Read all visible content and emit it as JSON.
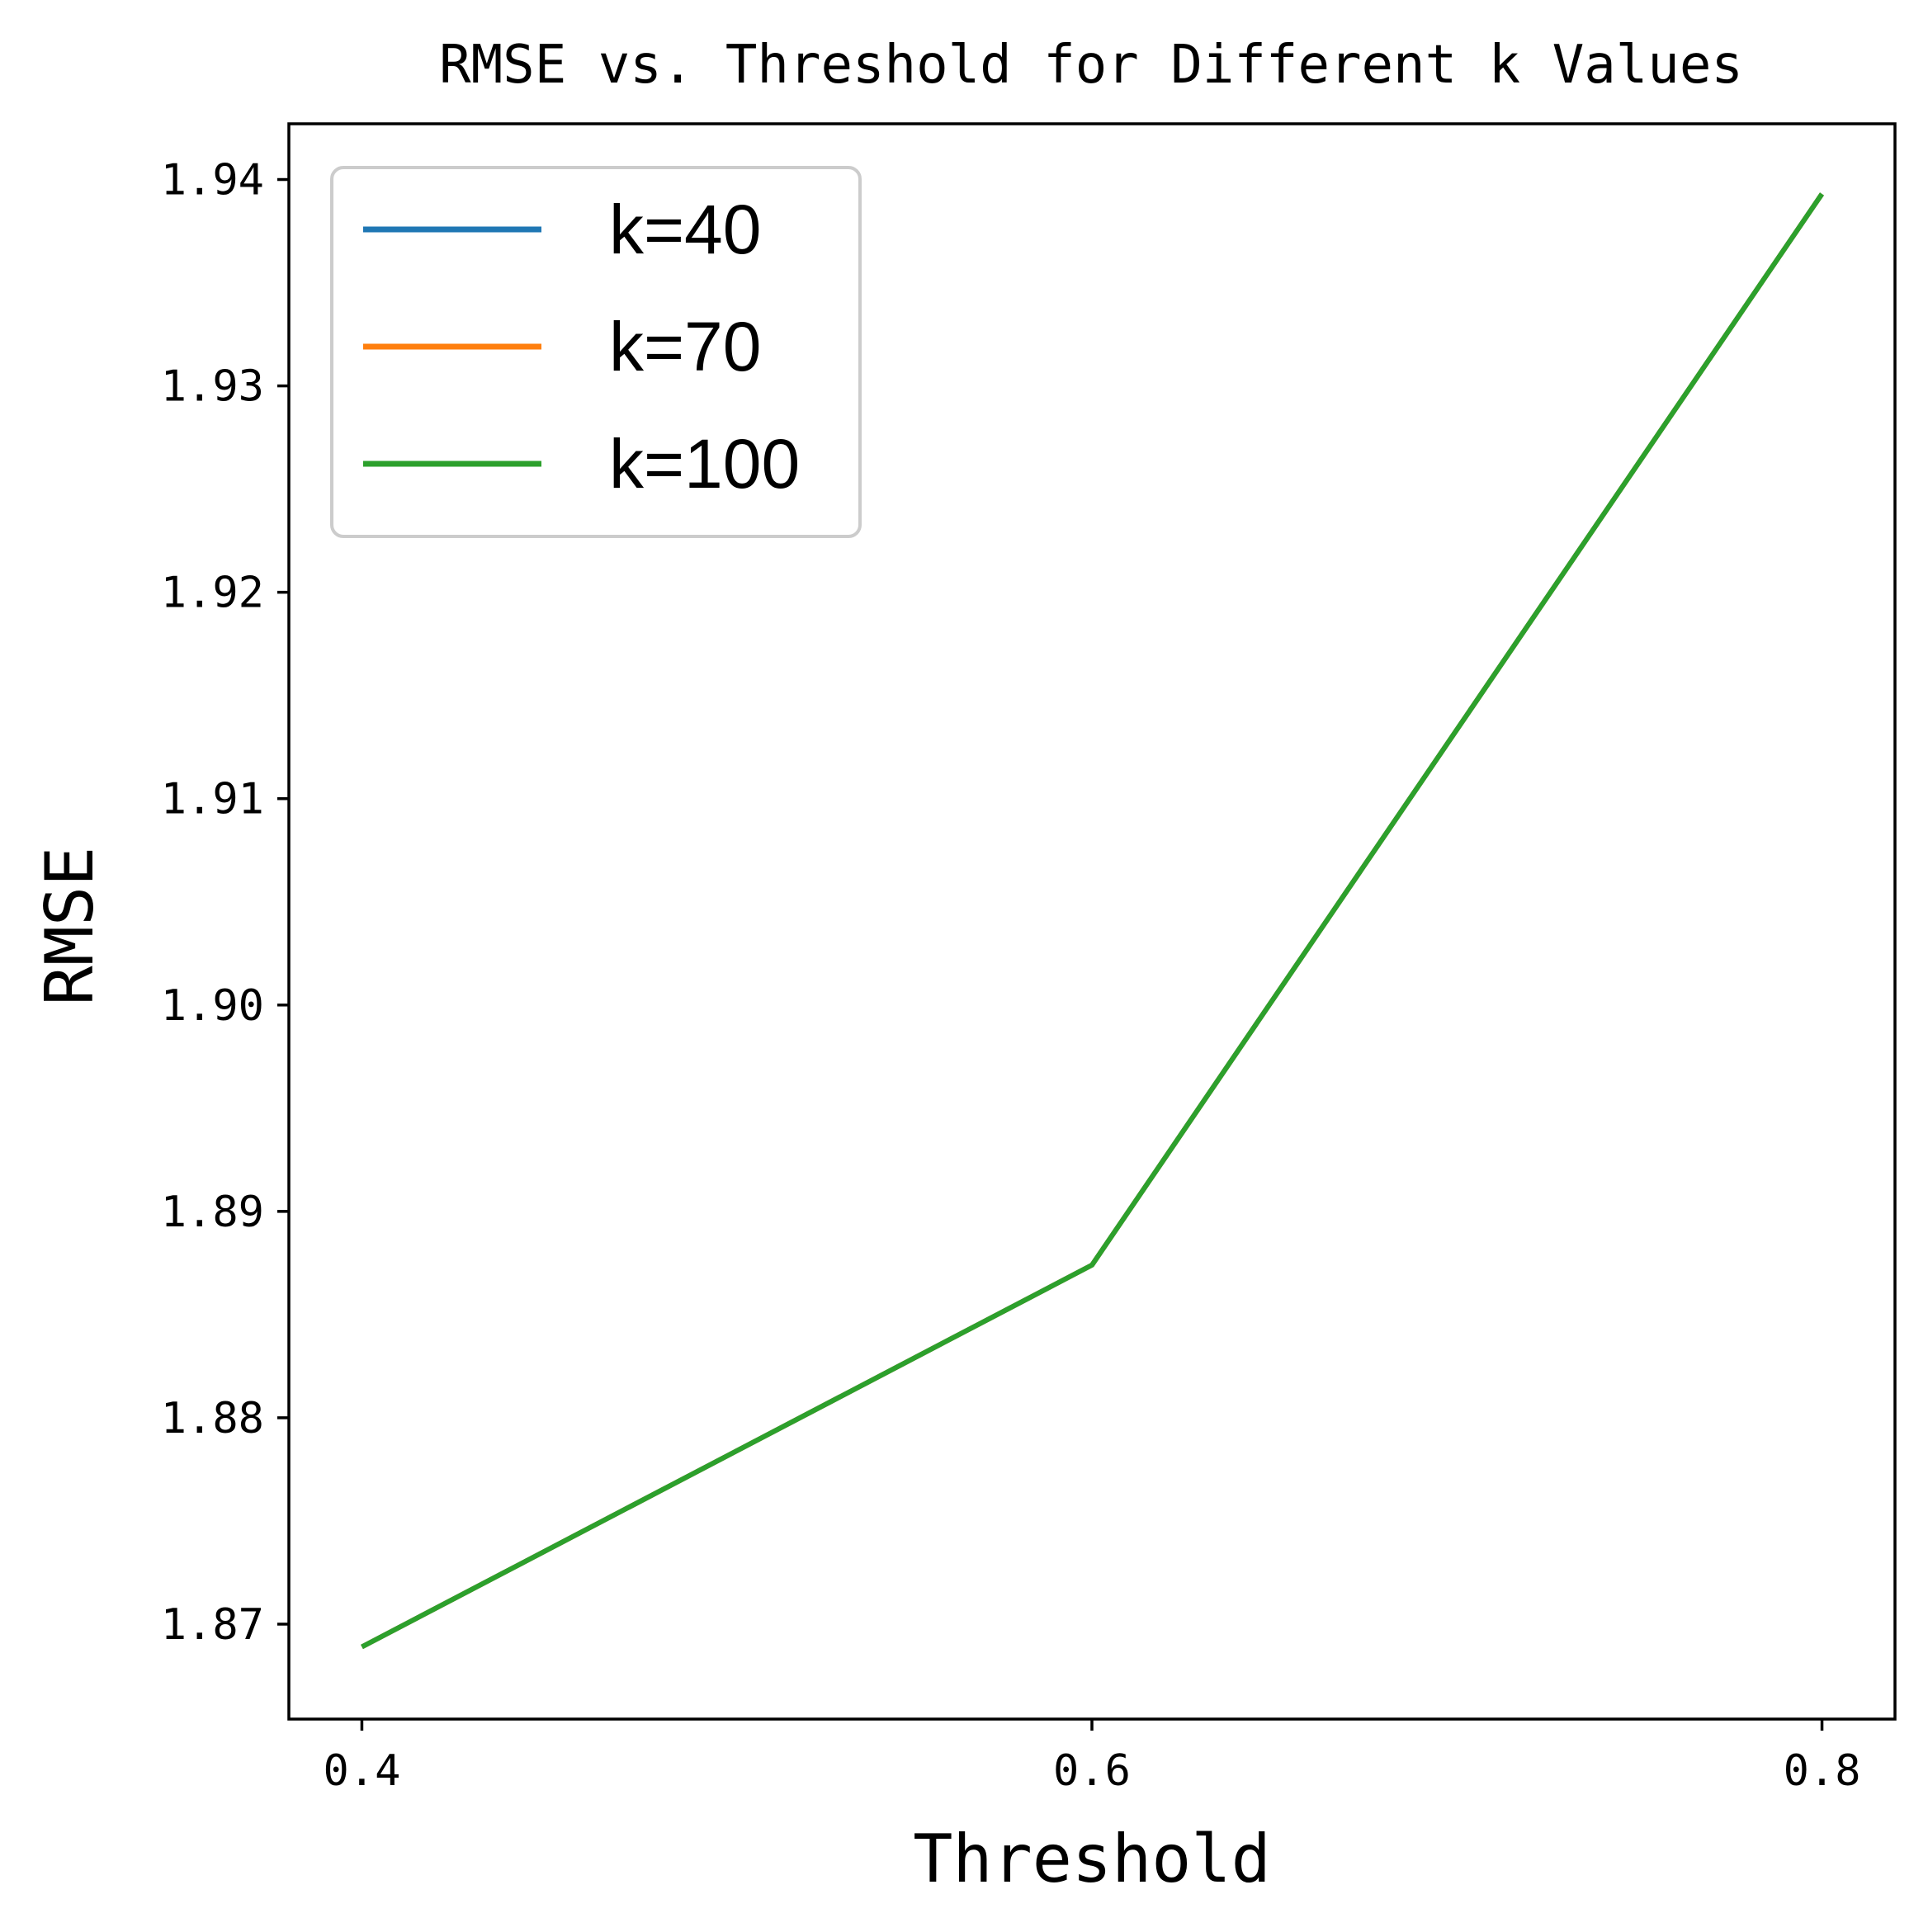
{
  "chart_data": {
    "type": "line",
    "title": "RMSE vs. Threshold for Different k Values",
    "xlabel": "Threshold",
    "ylabel": "RMSE",
    "x": [
      0.4,
      0.6,
      0.8
    ],
    "series": [
      {
        "name": "k=40",
        "color": "#1f77b4",
        "values": [
          1.8689,
          1.8874,
          1.9393
        ]
      },
      {
        "name": "k=70",
        "color": "#ff7f0e",
        "values": [
          1.8689,
          1.8874,
          1.9393
        ]
      },
      {
        "name": "k=100",
        "color": "#2ca02c",
        "values": [
          1.8689,
          1.8874,
          1.9393
        ]
      }
    ],
    "xlim": [
      0.38,
      0.82
    ],
    "ylim": [
      1.8654,
      1.9427
    ],
    "xticks": [
      0.4,
      0.6,
      0.8
    ],
    "xtick_labels": [
      "0.4",
      "0.6",
      "0.8"
    ],
    "yticks": [
      1.87,
      1.88,
      1.89,
      1.9,
      1.91,
      1.92,
      1.93,
      1.94
    ],
    "ytick_labels": [
      "1.87",
      "1.88",
      "1.89",
      "1.90",
      "1.91",
      "1.92",
      "1.93",
      "1.94"
    ],
    "grid": false,
    "legend_position": "upper-left"
  }
}
